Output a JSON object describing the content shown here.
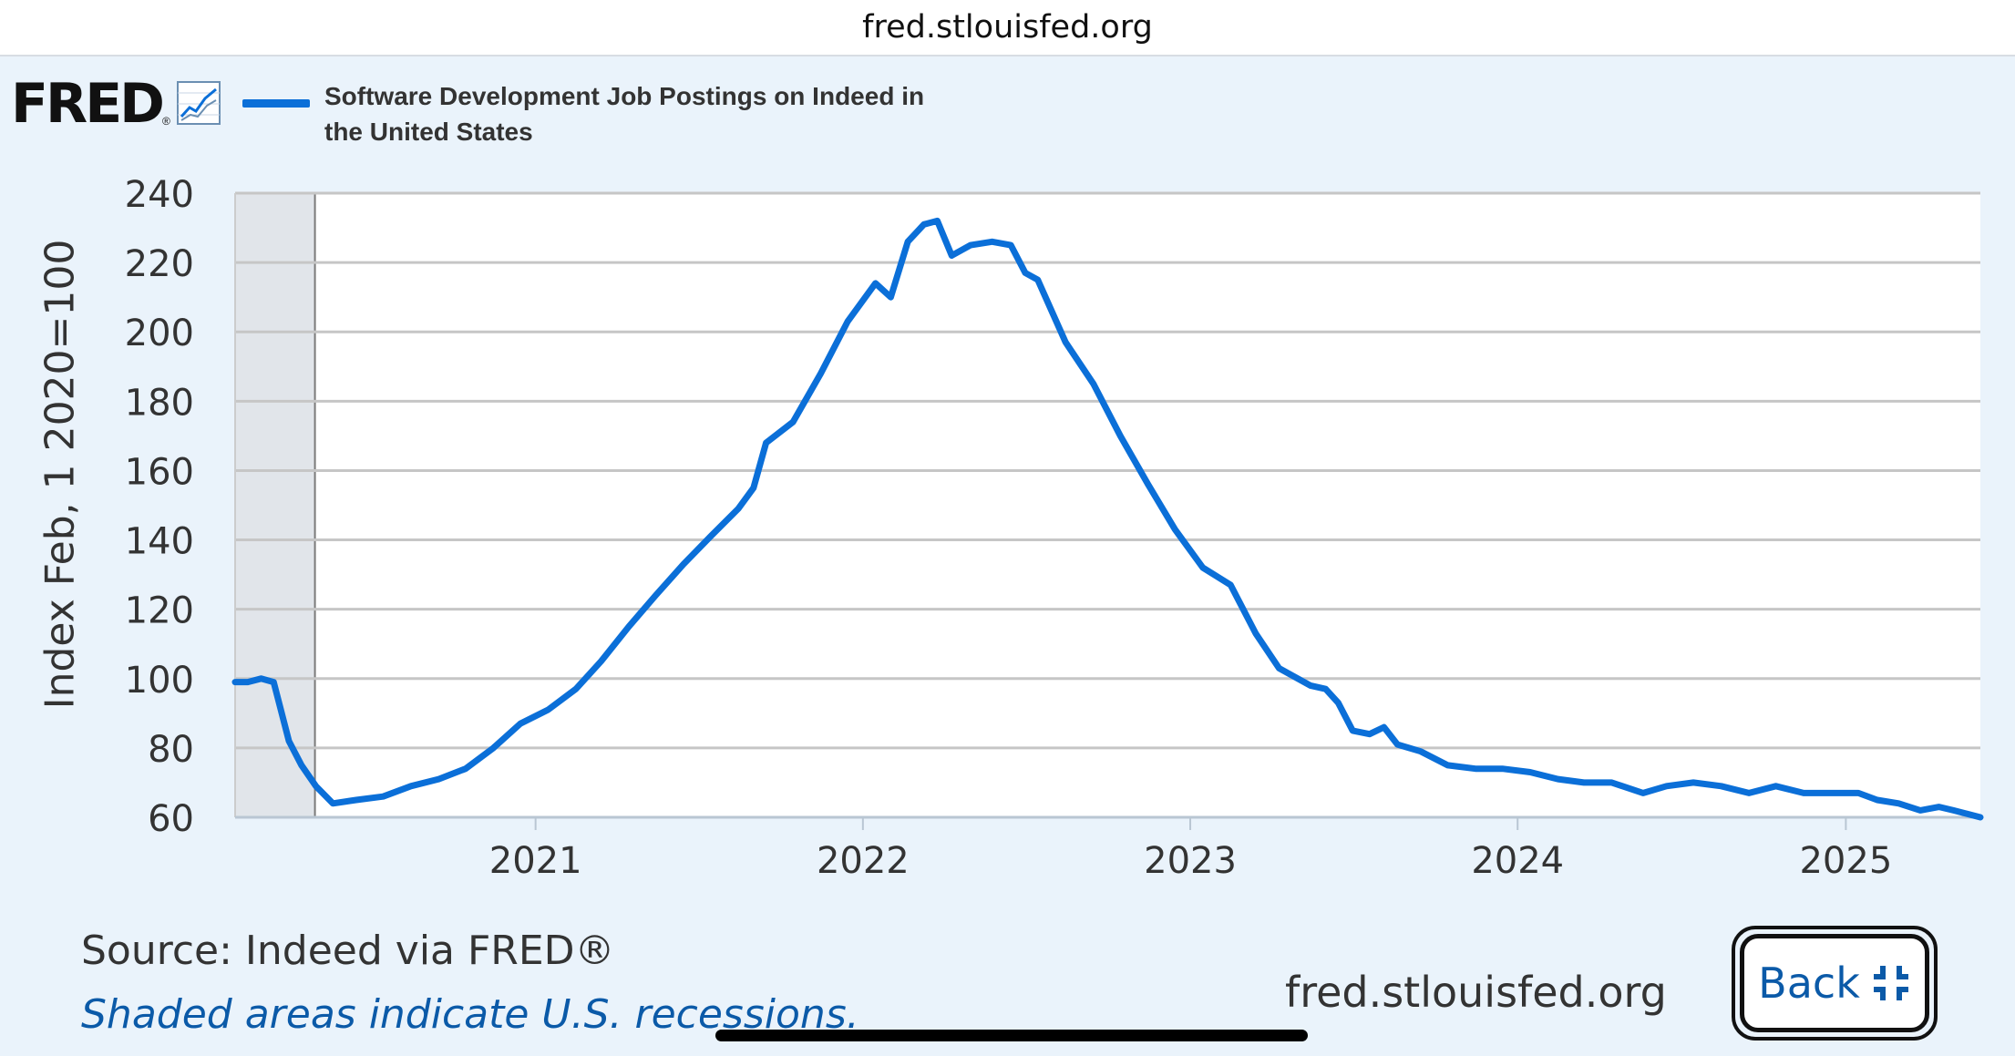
{
  "browser": {
    "url": "fred.stlouisfed.org"
  },
  "header": {
    "logo_text": "FRED",
    "logo_reg": "®",
    "icon": "line-graph-icon"
  },
  "chart_data": {
    "type": "line",
    "legend_entries": [
      "Software Development Job Postings on Indeed in the United States"
    ],
    "legend_placement": "top-left",
    "ylabel": "Index Feb, 1 2020=100",
    "xlabel": "",
    "ylim": [
      60,
      240
    ],
    "yticks": [
      "60",
      "80",
      "100",
      "120",
      "140",
      "160",
      "180",
      "200",
      "220",
      "240"
    ],
    "xlim": [
      "2020-02-01",
      "2025-05-31"
    ],
    "xticks": [
      "2021",
      "2022",
      "2023",
      "2024",
      "2025"
    ],
    "grid": "horizontal",
    "recession_shading": [
      [
        "2020-02-01",
        "2020-04-30"
      ]
    ],
    "series": [
      {
        "name": "Software Development Job Postings on Indeed in the United States",
        "color": "#0b6fd8",
        "points": [
          [
            "2020-02-01",
            99
          ],
          [
            "2020-02-15",
            99
          ],
          [
            "2020-03-01",
            100
          ],
          [
            "2020-03-15",
            99
          ],
          [
            "2020-04-01",
            82
          ],
          [
            "2020-04-15",
            75
          ],
          [
            "2020-05-01",
            69
          ],
          [
            "2020-05-20",
            64
          ],
          [
            "2020-06-15",
            65
          ],
          [
            "2020-07-15",
            66
          ],
          [
            "2020-08-15",
            69
          ],
          [
            "2020-09-15",
            71
          ],
          [
            "2020-10-15",
            74
          ],
          [
            "2020-11-15",
            80
          ],
          [
            "2020-12-15",
            87
          ],
          [
            "2021-01-15",
            91
          ],
          [
            "2021-02-15",
            97
          ],
          [
            "2021-03-15",
            105
          ],
          [
            "2021-04-15",
            115
          ],
          [
            "2021-05-15",
            124
          ],
          [
            "2021-06-15",
            133
          ],
          [
            "2021-07-15",
            141
          ],
          [
            "2021-08-15",
            149
          ],
          [
            "2021-09-01",
            155
          ],
          [
            "2021-09-15",
            168
          ],
          [
            "2021-10-15",
            174
          ],
          [
            "2021-11-15",
            188
          ],
          [
            "2021-12-15",
            203
          ],
          [
            "2022-01-15",
            214
          ],
          [
            "2022-02-01",
            210
          ],
          [
            "2022-02-20",
            226
          ],
          [
            "2022-03-10",
            231
          ],
          [
            "2022-03-25",
            232
          ],
          [
            "2022-04-10",
            222
          ],
          [
            "2022-05-01",
            225
          ],
          [
            "2022-05-25",
            226
          ],
          [
            "2022-06-15",
            225
          ],
          [
            "2022-07-01",
            217
          ],
          [
            "2022-07-15",
            215
          ],
          [
            "2022-08-15",
            197
          ],
          [
            "2022-09-15",
            185
          ],
          [
            "2022-10-15",
            170
          ],
          [
            "2022-11-15",
            156
          ],
          [
            "2022-12-15",
            143
          ],
          [
            "2023-01-15",
            132
          ],
          [
            "2023-02-15",
            127
          ],
          [
            "2023-03-15",
            113
          ],
          [
            "2023-04-10",
            103
          ],
          [
            "2023-05-15",
            98
          ],
          [
            "2023-06-01",
            97
          ],
          [
            "2023-06-15",
            93
          ],
          [
            "2023-07-01",
            85
          ],
          [
            "2023-07-20",
            84
          ],
          [
            "2023-08-05",
            86
          ],
          [
            "2023-08-20",
            81
          ],
          [
            "2023-09-15",
            79
          ],
          [
            "2023-10-15",
            75
          ],
          [
            "2023-11-15",
            74
          ],
          [
            "2023-12-15",
            74
          ],
          [
            "2024-01-15",
            73
          ],
          [
            "2024-02-15",
            71
          ],
          [
            "2024-03-15",
            70
          ],
          [
            "2024-04-15",
            70
          ],
          [
            "2024-05-20",
            67
          ],
          [
            "2024-06-15",
            69
          ],
          [
            "2024-07-15",
            70
          ],
          [
            "2024-08-15",
            69
          ],
          [
            "2024-09-15",
            67
          ],
          [
            "2024-10-15",
            69
          ],
          [
            "2024-11-15",
            67
          ],
          [
            "2024-12-15",
            67
          ],
          [
            "2025-01-15",
            67
          ],
          [
            "2025-02-05",
            65
          ],
          [
            "2025-03-01",
            64
          ],
          [
            "2025-03-25",
            62
          ],
          [
            "2025-04-15",
            63
          ],
          [
            "2025-05-01",
            62
          ],
          [
            "2025-05-31",
            60
          ]
        ]
      }
    ]
  },
  "footer": {
    "source": "Source: Indeed via FRED®",
    "recession_note": "Shaded areas indicate U.S. recessions.",
    "url": "fred.stlouisfed.org",
    "back_label": "Back",
    "back_icon": "collapse-icon"
  }
}
